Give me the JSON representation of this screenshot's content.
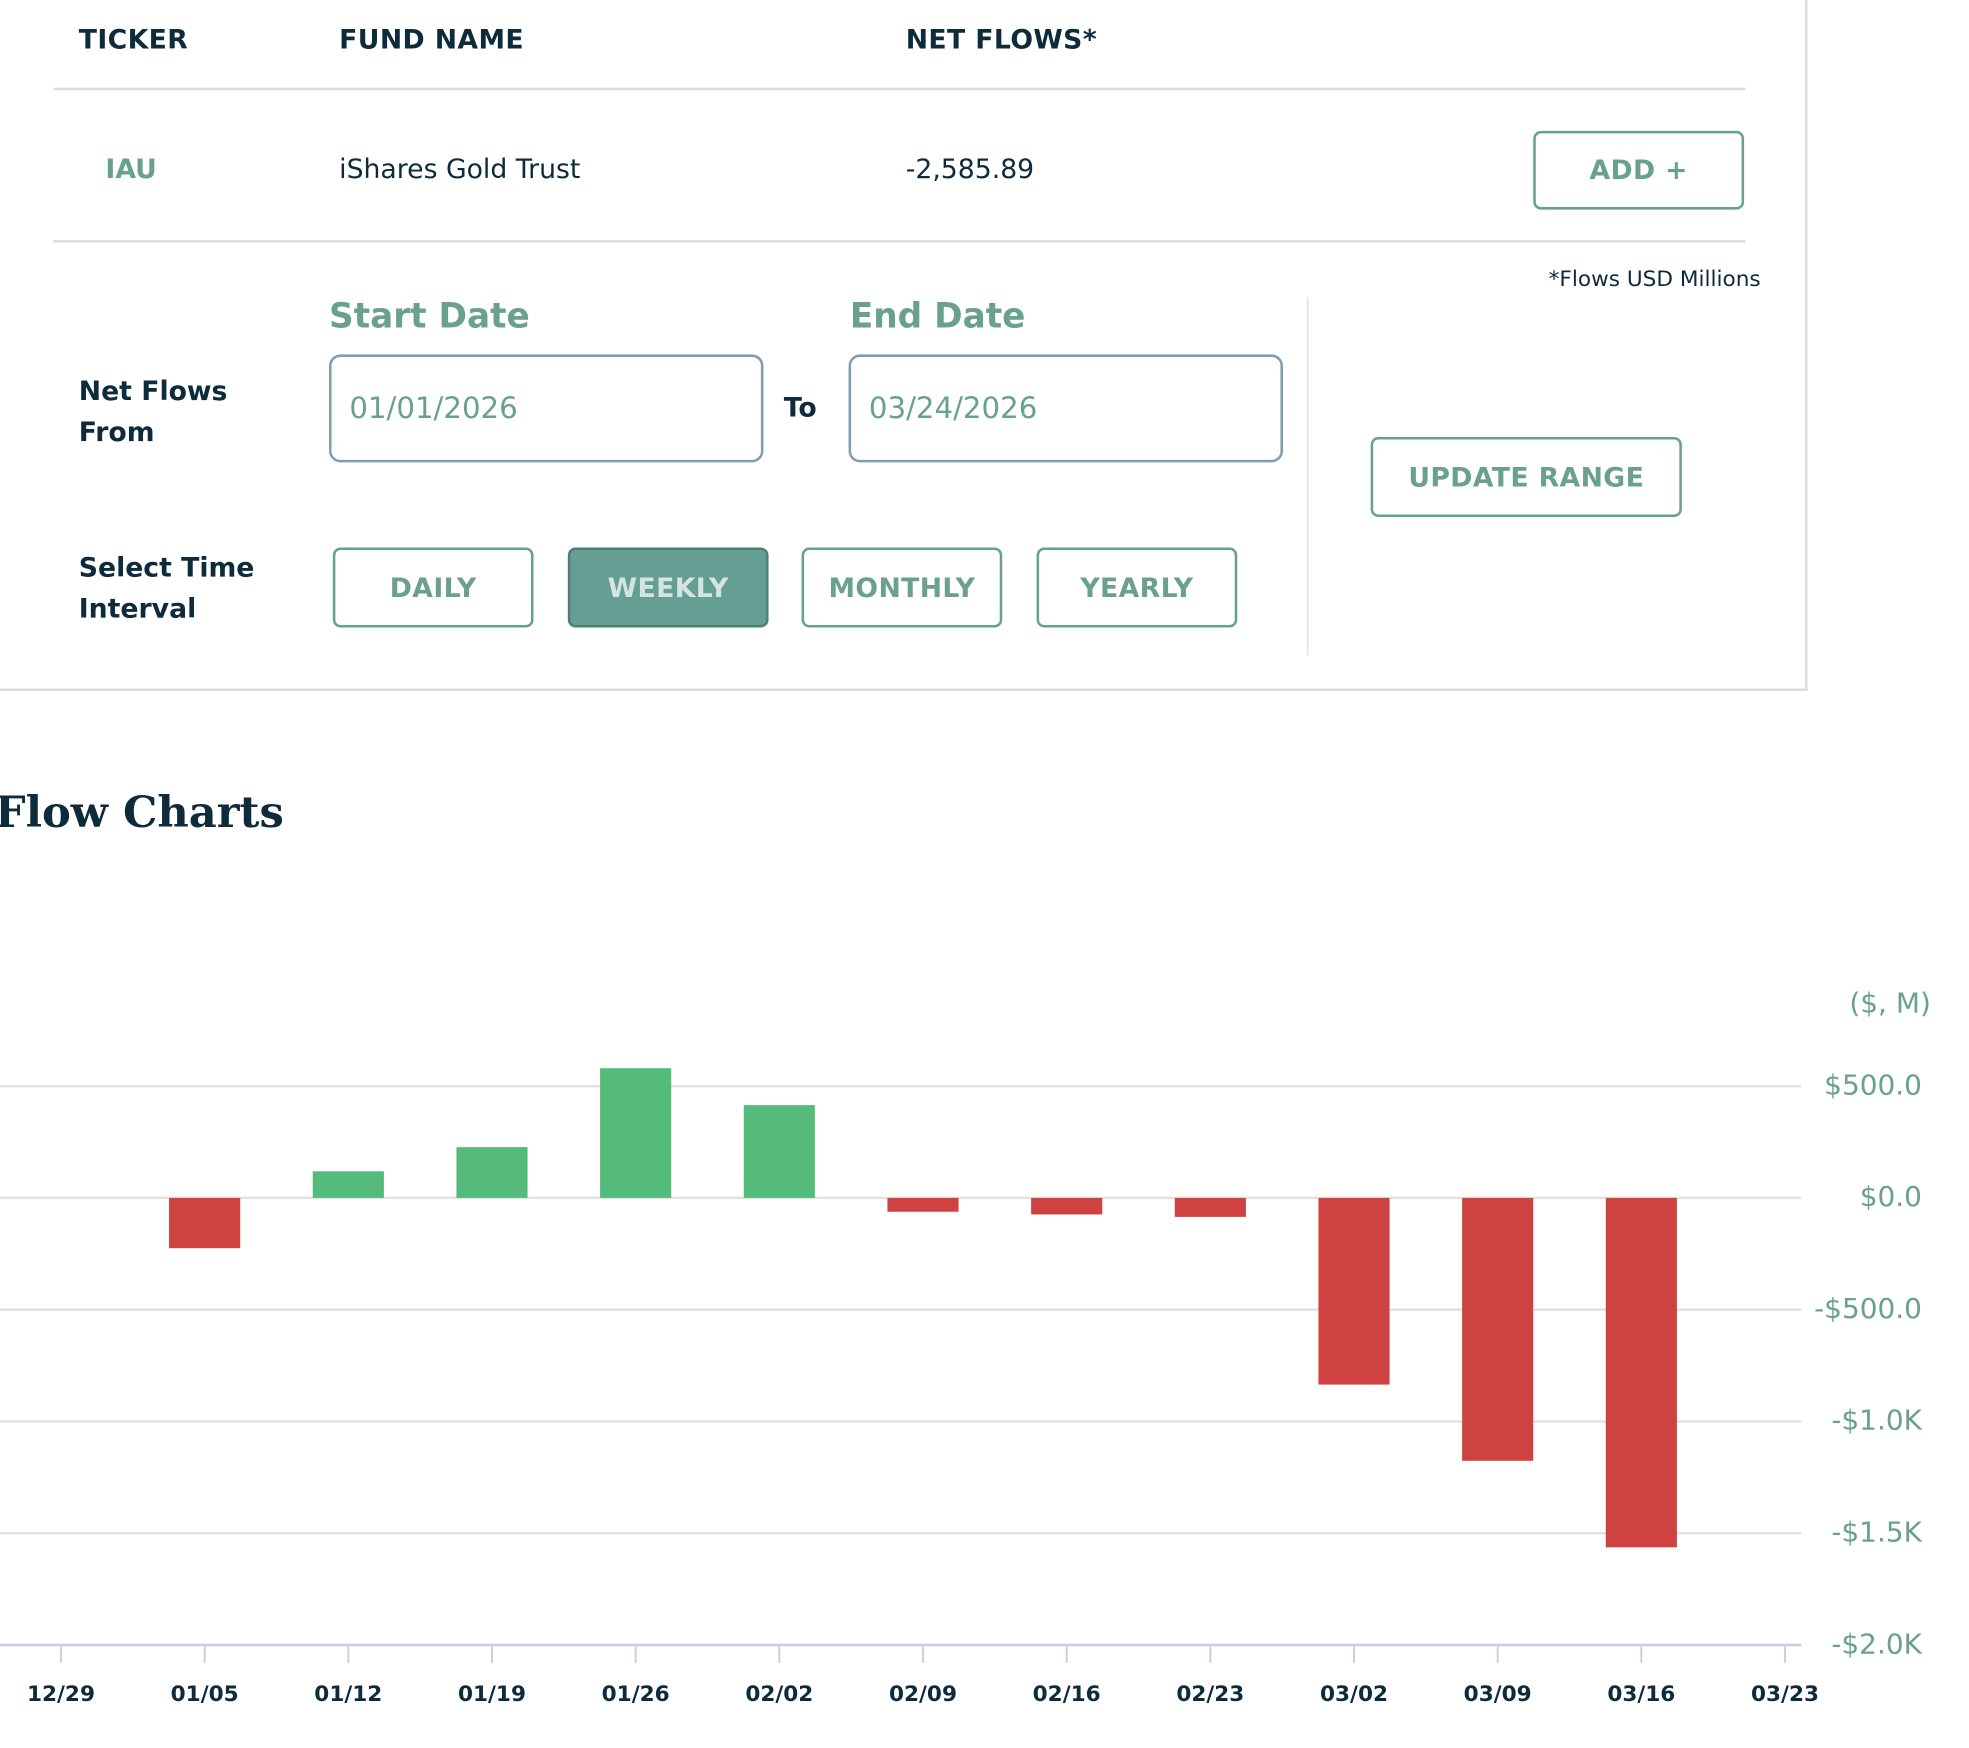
{
  "table": {
    "headers": {
      "ticker": "TICKER",
      "fund_name": "FUND NAME",
      "net_flows": "NET FLOWS*"
    },
    "row": {
      "ticker": "IAU",
      "fund_name": "iShares Gold Trust",
      "net_flows": "-2,585.89",
      "add_label": "ADD +"
    },
    "footnote": "*Flows USD Millions"
  },
  "range": {
    "net_flows_from_label": [
      "Net Flows",
      "From"
    ],
    "start_label": "Start Date",
    "start_value": "01/01/2026",
    "to_label": "To",
    "end_label": "End Date",
    "end_value": "03/24/2026",
    "update_label": "UPDATE RANGE",
    "interval_label": [
      "Select Time",
      "Interval"
    ],
    "intervals": [
      "DAILY",
      "WEEKLY",
      "MONTHLY",
      "YEARLY"
    ],
    "selected_interval": "WEEKLY"
  },
  "chart_title": "Flow Charts",
  "colors": {
    "accent": "#6aa08e",
    "positive": "#55bb7a",
    "negative": "#cf4242",
    "text": "#0d2b3a"
  },
  "chart_data": {
    "type": "bar",
    "unit_label": "($, M)",
    "x_ticks": [
      "12/29",
      "01/05",
      "01/12",
      "01/19",
      "01/26",
      "02/02",
      "02/09",
      "02/16",
      "02/23",
      "03/02",
      "03/09",
      "03/16",
      "03/23"
    ],
    "categories": [
      "01/05",
      "01/12",
      "01/19",
      "01/26",
      "02/02",
      "02/09",
      "02/16",
      "02/23",
      "03/02",
      "03/09",
      "03/16"
    ],
    "values": [
      -225,
      119,
      227,
      580,
      415,
      -62,
      -74,
      -85,
      -835,
      -1176,
      -1563
    ],
    "y_ticks": [
      500,
      0,
      -500,
      -1000,
      -1500,
      -2000
    ],
    "y_tick_labels": [
      "$500.0",
      "$0.0",
      "-$500.0",
      "-$1.0K",
      "-$1.5K",
      "-$2.0K"
    ],
    "ylim": [
      -2000,
      500
    ],
    "grid": true
  }
}
